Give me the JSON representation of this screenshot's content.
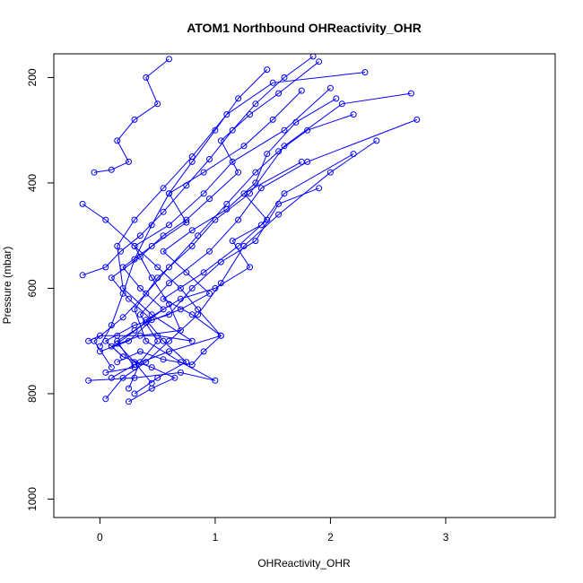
{
  "chart_data": {
    "type": "line",
    "title": "ATOM1 Northbound OHReactivity_OHR",
    "xlabel": "OHReactivity_OHR",
    "ylabel": "Pressure (mbar)",
    "xlim": [
      -0.4,
      3.95
    ],
    "ylim": [
      1035,
      155
    ],
    "y_reversed": true,
    "x_ticks": [
      0,
      1,
      2,
      3
    ],
    "y_ticks": [
      200,
      400,
      600,
      800,
      1000
    ],
    "grid": false,
    "legend": "none",
    "marker": "open-circle",
    "color": "#0000ff",
    "series": [
      {
        "points": [
          [
            -0.15,
            575
          ],
          [
            0.05,
            560
          ],
          [
            0.18,
            530
          ],
          [
            0.35,
            500
          ],
          [
            0.55,
            455
          ],
          [
            0.75,
            405
          ],
          [
            0.95,
            355
          ],
          [
            1.15,
            300
          ],
          [
            1.35,
            250
          ],
          [
            1.6,
            200
          ],
          [
            1.85,
            160
          ]
        ]
      },
      {
        "points": [
          [
            0.0,
            710
          ],
          [
            0.1,
            670
          ],
          [
            0.2,
            610
          ],
          [
            0.3,
            545
          ],
          [
            0.45,
            480
          ],
          [
            0.6,
            420
          ],
          [
            0.8,
            360
          ],
          [
            1.0,
            300
          ],
          [
            1.2,
            240
          ],
          [
            1.45,
            185
          ]
        ]
      },
      {
        "points": [
          [
            0.1,
            750
          ],
          [
            -0.05,
            700
          ],
          [
            0.2,
            655
          ],
          [
            0.4,
            610
          ],
          [
            0.6,
            560
          ],
          [
            0.85,
            500
          ],
          [
            1.1,
            440
          ],
          [
            1.35,
            380
          ],
          [
            1.55,
            340
          ],
          [
            1.8,
            300
          ],
          [
            2.2,
            270
          ]
        ]
      },
      {
        "points": [
          [
            0.25,
            790
          ],
          [
            0.35,
            740
          ],
          [
            0.5,
            700
          ],
          [
            0.35,
            650
          ],
          [
            0.6,
            590
          ],
          [
            0.95,
            530
          ],
          [
            1.2,
            470
          ],
          [
            1.4,
            410
          ],
          [
            1.8,
            360
          ],
          [
            2.75,
            280
          ]
        ]
      },
      {
        "points": [
          [
            0.05,
            810
          ],
          [
            0.2,
            770
          ],
          [
            0.4,
            740
          ],
          [
            0.6,
            700
          ],
          [
            0.85,
            650
          ],
          [
            1.05,
            590
          ],
          [
            1.25,
            520
          ],
          [
            1.55,
            460
          ],
          [
            2.0,
            380
          ],
          [
            2.4,
            320
          ]
        ]
      },
      {
        "points": [
          [
            -0.1,
            700
          ],
          [
            0.0,
            690
          ],
          [
            0.15,
            690
          ],
          [
            0.5,
            690
          ],
          [
            0.8,
            700
          ],
          [
            0.45,
            650
          ],
          [
            0.2,
            600
          ],
          [
            0.15,
            520
          ],
          [
            0.3,
            470
          ],
          [
            0.55,
            410
          ],
          [
            0.8,
            350
          ],
          [
            1.1,
            270
          ],
          [
            1.5,
            210
          ],
          [
            2.3,
            190
          ]
        ]
      },
      {
        "points": [
          [
            -0.1,
            775
          ],
          [
            0.3,
            770
          ],
          [
            0.7,
            760
          ],
          [
            1.0,
            775
          ],
          [
            0.7,
            740
          ],
          [
            0.4,
            700
          ],
          [
            0.3,
            640
          ],
          [
            0.5,
            580
          ],
          [
            0.8,
            520
          ],
          [
            1.0,
            470
          ],
          [
            1.3,
            420
          ],
          [
            1.6,
            330
          ],
          [
            2.1,
            250
          ],
          [
            2.7,
            230
          ]
        ]
      },
      {
        "points": [
          [
            0.2,
            730
          ],
          [
            0.1,
            710
          ],
          [
            0.35,
            690
          ],
          [
            0.7,
            680
          ],
          [
            0.6,
            630
          ],
          [
            0.45,
            580
          ],
          [
            0.3,
            520
          ],
          [
            0.6,
            480
          ],
          [
            0.9,
            420
          ],
          [
            1.15,
            360
          ],
          [
            1.6,
            300
          ],
          [
            2.0,
            220
          ]
        ]
      },
      {
        "points": [
          [
            -0.15,
            440
          ],
          [
            0.05,
            470
          ],
          [
            0.3,
            520
          ],
          [
            0.5,
            560
          ],
          [
            0.7,
            600
          ],
          [
            0.85,
            640
          ],
          [
            1.05,
            690
          ],
          [
            0.6,
            720
          ],
          [
            0.3,
            745
          ],
          [
            0.1,
            770
          ]
        ]
      },
      {
        "points": [
          [
            -0.05,
            380
          ],
          [
            0.1,
            375
          ],
          [
            0.25,
            360
          ],
          [
            0.15,
            320
          ],
          [
            0.3,
            280
          ],
          [
            0.5,
            250
          ],
          [
            0.4,
            200
          ],
          [
            0.6,
            165
          ]
        ]
      },
      {
        "points": [
          [
            0.3,
            800
          ],
          [
            0.5,
            770
          ],
          [
            0.75,
            740
          ],
          [
            0.55,
            700
          ],
          [
            0.4,
            660
          ],
          [
            0.7,
            620
          ],
          [
            1.0,
            600
          ],
          [
            1.3,
            560
          ],
          [
            1.15,
            510
          ],
          [
            1.4,
            480
          ],
          [
            1.6,
            420
          ],
          [
            2.2,
            345
          ]
        ]
      },
      {
        "points": [
          [
            0.0,
            720
          ],
          [
            0.25,
            700
          ],
          [
            0.45,
            660
          ],
          [
            0.25,
            620
          ],
          [
            0.1,
            580
          ],
          [
            0.35,
            540
          ],
          [
            0.55,
            500
          ],
          [
            0.75,
            470
          ],
          [
            0.95,
            430
          ],
          [
            1.2,
            380
          ],
          [
            1.05,
            320
          ],
          [
            1.3,
            270
          ],
          [
            1.55,
            230
          ],
          [
            1.9,
            170
          ]
        ]
      },
      {
        "points": [
          [
            0.15,
            740
          ],
          [
            0.35,
            720
          ],
          [
            0.55,
            735
          ],
          [
            0.8,
            745
          ],
          [
            0.9,
            720
          ],
          [
            1.05,
            690
          ],
          [
            0.8,
            650
          ],
          [
            0.55,
            620
          ],
          [
            0.9,
            570
          ],
          [
            1.2,
            520
          ],
          [
            1.45,
            470
          ],
          [
            1.25,
            420
          ],
          [
            1.75,
            360
          ]
        ]
      },
      {
        "points": [
          [
            0.05,
            760
          ],
          [
            0.3,
            750
          ],
          [
            0.15,
            700
          ],
          [
            0.3,
            680
          ],
          [
            0.55,
            640
          ],
          [
            0.35,
            600
          ],
          [
            0.2,
            560
          ],
          [
            0.45,
            520
          ],
          [
            0.75,
            475
          ],
          [
            0.6,
            420
          ],
          [
            0.9,
            380
          ],
          [
            1.25,
            330
          ],
          [
            1.5,
            280
          ],
          [
            1.75,
            225
          ]
        ]
      },
      {
        "points": [
          [
            0.25,
            815
          ],
          [
            0.45,
            790
          ],
          [
            0.65,
            770
          ],
          [
            0.45,
            750
          ],
          [
            0.2,
            730
          ],
          [
            0.05,
            700
          ],
          [
            0.3,
            670
          ],
          [
            0.6,
            650
          ],
          [
            0.8,
            600
          ],
          [
            1.05,
            550
          ],
          [
            1.35,
            510
          ],
          [
            1.55,
            440
          ],
          [
            1.9,
            410
          ]
        ]
      },
      {
        "points": [
          [
            0.45,
            780
          ],
          [
            0.3,
            740
          ],
          [
            0.15,
            705
          ],
          [
            0.4,
            665
          ],
          [
            0.7,
            640
          ],
          [
            0.95,
            610
          ],
          [
            0.75,
            570
          ],
          [
            0.55,
            530
          ],
          [
            0.8,
            490
          ],
          [
            1.1,
            450
          ],
          [
            1.35,
            400
          ],
          [
            1.45,
            345
          ],
          [
            1.7,
            285
          ],
          [
            2.05,
            240
          ]
        ]
      }
    ]
  }
}
